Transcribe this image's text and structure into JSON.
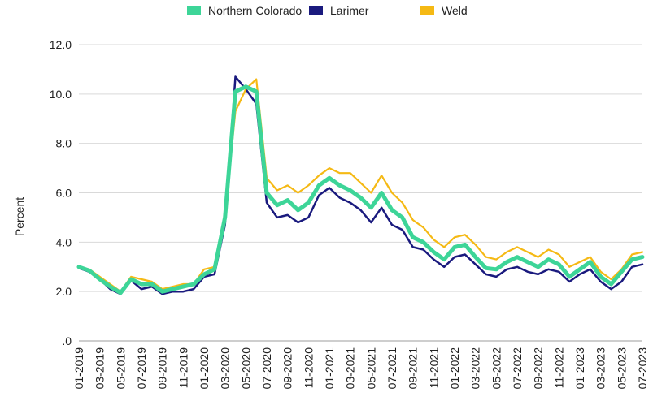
{
  "chart_data": {
    "type": "line",
    "title": "",
    "xlabel": "",
    "ylabel": "Percent",
    "ylim": [
      0,
      12
    ],
    "y_ticks": [
      ".0",
      "2.0",
      "4.0",
      "6.0",
      "8.0",
      "10.0",
      "12.0"
    ],
    "y_tick_values": [
      0,
      2,
      4,
      6,
      8,
      10,
      12
    ],
    "grid": "horizontal",
    "legend_position": "top",
    "x_tick_labels": [
      "01-2019",
      "03-2019",
      "05-2019",
      "07-2019",
      "09-2019",
      "11-2019",
      "01-2020",
      "03-2020",
      "05-2020",
      "07-2020",
      "09-2020",
      "11-2020",
      "01-2021",
      "03-2021",
      "05-2021",
      "07-2021",
      "09-2021",
      "11-2021",
      "01-2022",
      "03-2022",
      "05-2022",
      "07-2022",
      "09-2022",
      "11-2022",
      "01-2023",
      "03-2023",
      "05-2023",
      "07-2023"
    ],
    "x": [
      "01-2019",
      "02-2019",
      "03-2019",
      "04-2019",
      "05-2019",
      "06-2019",
      "07-2019",
      "08-2019",
      "09-2019",
      "10-2019",
      "11-2019",
      "12-2019",
      "01-2020",
      "02-2020",
      "03-2020",
      "04-2020",
      "05-2020",
      "06-2020",
      "07-2020",
      "08-2020",
      "09-2020",
      "10-2020",
      "11-2020",
      "12-2020",
      "01-2021",
      "02-2021",
      "03-2021",
      "04-2021",
      "05-2021",
      "06-2021",
      "07-2021",
      "08-2021",
      "09-2021",
      "10-2021",
      "11-2021",
      "12-2021",
      "01-2022",
      "02-2022",
      "03-2022",
      "04-2022",
      "05-2022",
      "06-2022",
      "07-2022",
      "08-2022",
      "09-2022",
      "10-2022",
      "11-2022",
      "12-2022",
      "01-2023",
      "02-2023",
      "03-2023",
      "04-2023",
      "05-2023",
      "06-2023",
      "07-2023"
    ],
    "series": [
      {
        "name": "Northern Colorado",
        "color": "#3dd598",
        "values": [
          3.0,
          2.85,
          2.5,
          2.2,
          1.95,
          2.5,
          2.3,
          2.3,
          2.0,
          2.1,
          2.2,
          2.3,
          2.7,
          2.9,
          5.0,
          10.1,
          10.3,
          10.1,
          6.0,
          5.5,
          5.7,
          5.3,
          5.6,
          6.3,
          6.6,
          6.3,
          6.1,
          5.8,
          5.4,
          6.0,
          5.3,
          5.0,
          4.2,
          4.0,
          3.6,
          3.3,
          3.8,
          3.9,
          3.4,
          2.95,
          2.9,
          3.2,
          3.4,
          3.2,
          3.0,
          3.3,
          3.1,
          2.6,
          2.9,
          3.2,
          2.6,
          2.3,
          2.8,
          3.3,
          3.4
        ]
      },
      {
        "name": "Larimer",
        "color": "#1a1a7e",
        "values": [
          2.95,
          2.8,
          2.5,
          2.1,
          1.9,
          2.45,
          2.1,
          2.2,
          1.9,
          2.0,
          2.0,
          2.1,
          2.6,
          2.7,
          4.7,
          10.7,
          10.2,
          9.6,
          5.6,
          5.0,
          5.1,
          4.8,
          5.0,
          5.9,
          6.2,
          5.8,
          5.6,
          5.3,
          4.8,
          5.4,
          4.7,
          4.5,
          3.8,
          3.7,
          3.3,
          3.0,
          3.4,
          3.5,
          3.1,
          2.7,
          2.6,
          2.9,
          3.0,
          2.8,
          2.7,
          2.9,
          2.8,
          2.4,
          2.7,
          2.9,
          2.4,
          2.1,
          2.4,
          3.0,
          3.1
        ]
      },
      {
        "name": "Weld",
        "color": "#f5b914",
        "values": [
          3.0,
          2.9,
          2.6,
          2.3,
          2.0,
          2.6,
          2.5,
          2.4,
          2.1,
          2.2,
          2.3,
          2.3,
          2.9,
          3.0,
          5.2,
          9.3,
          10.2,
          10.6,
          6.6,
          6.1,
          6.3,
          6.0,
          6.3,
          6.7,
          7.0,
          6.8,
          6.8,
          6.4,
          6.0,
          6.7,
          6.0,
          5.6,
          4.9,
          4.6,
          4.1,
          3.8,
          4.2,
          4.3,
          3.9,
          3.4,
          3.3,
          3.6,
          3.8,
          3.6,
          3.4,
          3.7,
          3.5,
          3.0,
          3.2,
          3.4,
          2.8,
          2.5,
          2.9,
          3.5,
          3.6
        ]
      }
    ]
  }
}
